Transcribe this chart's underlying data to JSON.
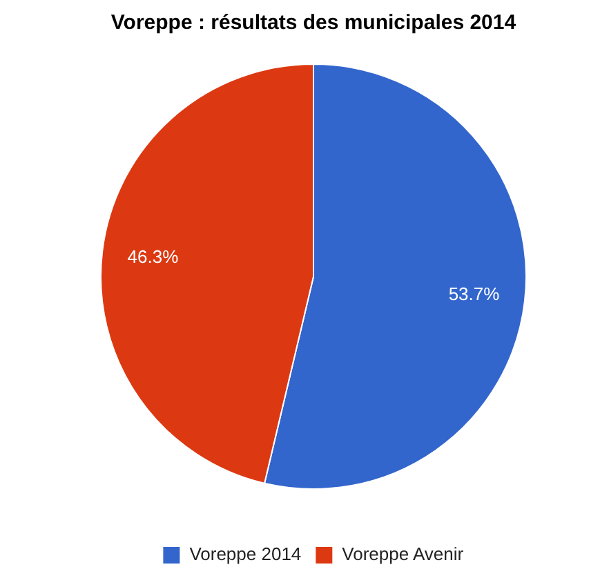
{
  "chart_data": {
    "type": "pie",
    "title": "Voreppe : résultats des municipales 2014",
    "categories": [
      "Voreppe 2014",
      "Voreppe Avenir"
    ],
    "values": [
      53.7,
      46.3
    ],
    "colors": [
      "#3366cc",
      "#dc3912"
    ],
    "value_labels": [
      "53.7%",
      "46.3%"
    ],
    "legend": "bottom"
  }
}
